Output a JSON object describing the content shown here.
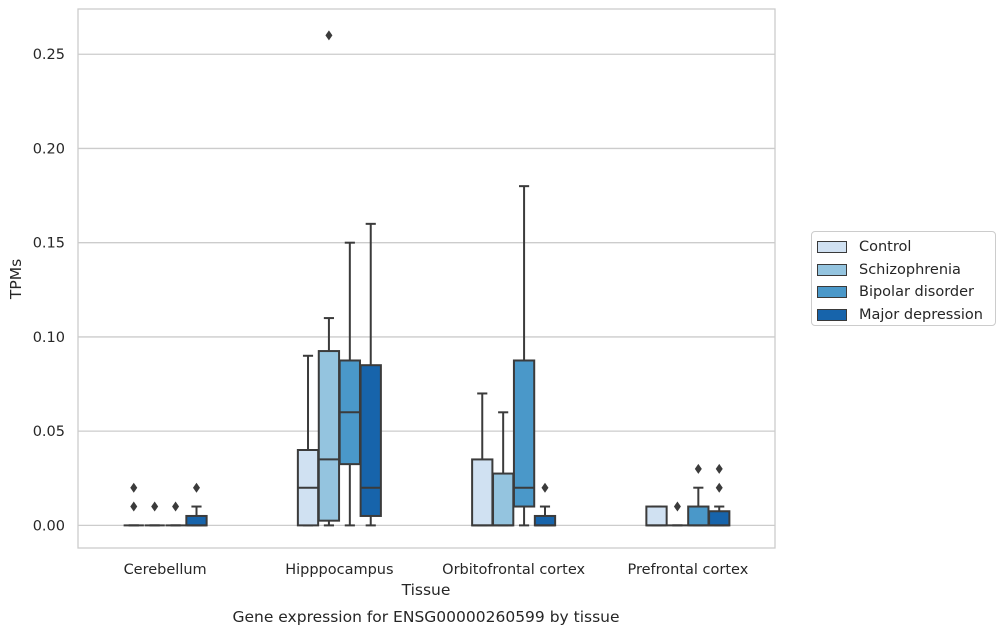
{
  "chart_data": {
    "type": "box",
    "title": "Gene expression for ENSG00000260599 by tissue",
    "xlabel": "Tissue",
    "ylabel": "TPMs",
    "ylim": [
      -0.012,
      0.274
    ],
    "yticks": [
      "0.00",
      "0.05",
      "0.10",
      "0.15",
      "0.20",
      "0.25"
    ],
    "grid": "horizontal",
    "legend_position": "right",
    "categories": [
      "Cerebellum",
      "Hipppocampus",
      "Orbitofrontal cortex",
      "Prefrontal cortex"
    ],
    "series": [
      {
        "name": "Control",
        "color": "#d0e1f2",
        "boxes": [
          {
            "whislo": 0,
            "q1": 0,
            "med": 0,
            "q3": 0,
            "whishi": 0,
            "fliers": [
              0.01,
              0.02
            ]
          },
          {
            "whislo": 0,
            "q1": 0,
            "med": 0.02,
            "q3": 0.04,
            "whishi": 0.09,
            "fliers": []
          },
          {
            "whislo": 0,
            "q1": 0,
            "med": 0,
            "q3": 0.035,
            "whishi": 0.07,
            "fliers": []
          },
          {
            "whislo": 0,
            "q1": 0,
            "med": 0,
            "q3": 0.01,
            "whishi": 0.01,
            "fliers": []
          }
        ]
      },
      {
        "name": "Schizophrenia",
        "color": "#94c4df",
        "boxes": [
          {
            "whislo": 0,
            "q1": 0,
            "med": 0,
            "q3": 0,
            "whishi": 0,
            "fliers": [
              0.01
            ]
          },
          {
            "whislo": 0,
            "q1": 0.0025,
            "med": 0.035,
            "q3": 0.0925,
            "whishi": 0.11,
            "fliers": [
              0.26
            ]
          },
          {
            "whislo": 0,
            "q1": 0,
            "med": 0,
            "q3": 0.0275,
            "whishi": 0.06,
            "fliers": []
          },
          {
            "whislo": 0,
            "q1": 0,
            "med": 0,
            "q3": 0,
            "whishi": 0,
            "fliers": [
              0.01
            ]
          }
        ]
      },
      {
        "name": "Bipolar disorder",
        "color": "#4a98c9",
        "boxes": [
          {
            "whislo": 0,
            "q1": 0,
            "med": 0,
            "q3": 0,
            "whishi": 0,
            "fliers": [
              0.01
            ]
          },
          {
            "whislo": 0,
            "q1": 0.0325,
            "med": 0.06,
            "q3": 0.0875,
            "whishi": 0.15,
            "fliers": []
          },
          {
            "whislo": 0,
            "q1": 0.01,
            "med": 0.02,
            "q3": 0.0875,
            "whishi": 0.18,
            "fliers": []
          },
          {
            "whislo": 0,
            "q1": 0,
            "med": 0,
            "q3": 0.01,
            "whishi": 0.02,
            "fliers": [
              0.03
            ]
          }
        ]
      },
      {
        "name": "Major depression",
        "color": "#1764ab",
        "boxes": [
          {
            "whislo": 0,
            "q1": 0,
            "med": 0,
            "q3": 0.005,
            "whishi": 0.01,
            "fliers": [
              0.02
            ]
          },
          {
            "whislo": 0,
            "q1": 0.005,
            "med": 0.02,
            "q3": 0.085,
            "whishi": 0.16,
            "fliers": []
          },
          {
            "whislo": 0,
            "q1": 0,
            "med": 0,
            "q3": 0.005,
            "whishi": 0.01,
            "fliers": [
              0.02
            ]
          },
          {
            "whislo": 0,
            "q1": 0,
            "med": 0,
            "q3": 0.0075,
            "whishi": 0.01,
            "fliers": [
              0.02,
              0.03
            ]
          }
        ]
      }
    ]
  }
}
